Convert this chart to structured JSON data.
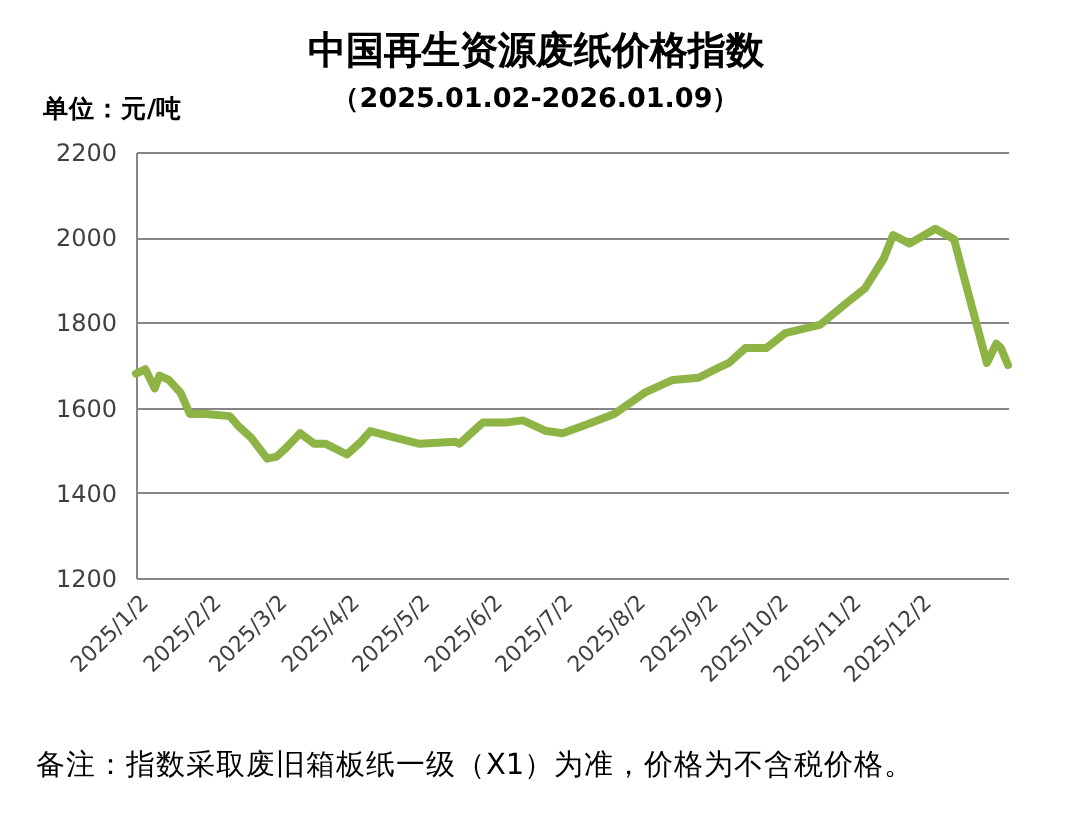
{
  "chart_data": {
    "type": "line",
    "title": "中国再生资源废纸价格指数",
    "subtitle": "（2025.01.02-2026.01.09）",
    "ylabel": "单位：元/吨",
    "annotations": [
      "备注：指数采取废旧箱板纸一级（X1）为准，价格为不含税价格。"
    ],
    "x": [
      "2025-01-02",
      "2025-01-06",
      "2025-01-10",
      "2025-01-12",
      "2025-01-16",
      "2025-01-21",
      "2025-01-25",
      "2025-02-01",
      "2025-02-11",
      "2025-02-15",
      "2025-02-20",
      "2025-02-27",
      "2025-03-03",
      "2025-03-07",
      "2025-03-13",
      "2025-03-19",
      "2025-03-24",
      "2025-04-02",
      "2025-04-08",
      "2025-04-12",
      "2025-04-22",
      "2025-05-03",
      "2025-05-18",
      "2025-05-20",
      "2025-05-30",
      "2025-06-09",
      "2025-06-16",
      "2025-06-26",
      "2025-07-03",
      "2025-07-13",
      "2025-07-25",
      "2025-08-07",
      "2025-08-19",
      "2025-08-30",
      "2025-09-08",
      "2025-09-12",
      "2025-09-19",
      "2025-09-28",
      "2025-10-06",
      "2025-10-21",
      "2025-11-01",
      "2025-11-09",
      "2025-11-17",
      "2025-11-21",
      "2025-11-28",
      "2025-12-09",
      "2025-12-17",
      "2025-12-22",
      "2025-12-31",
      "2026-01-04",
      "2026-01-06",
      "2026-01-09"
    ],
    "series": [
      {
        "color": "#8fb446",
        "values": [
          1680,
          1690,
          1645,
          1675,
          1665,
          1635,
          1585,
          1585,
          1580,
          1555,
          1530,
          1480,
          1485,
          1505,
          1540,
          1515,
          1515,
          1490,
          1520,
          1545,
          1530,
          1515,
          1520,
          1515,
          1565,
          1565,
          1570,
          1545,
          1540,
          1560,
          1585,
          1635,
          1665,
          1670,
          1695,
          1705,
          1740,
          1740,
          1775,
          1795,
          1845,
          1880,
          1950,
          2005,
          1985,
          2020,
          1995,
          1890,
          1705,
          1750,
          1740,
          1700
        ]
      }
    ],
    "xlim": [
      "2025-01-02",
      "2026-01-09"
    ],
    "ylim": [
      1200,
      2200
    ],
    "xticks": [
      {
        "value": "2025-01-02",
        "label": "2025/1/2"
      },
      {
        "value": "2025-02-02",
        "label": "2025/2/2"
      },
      {
        "value": "2025-03-02",
        "label": "2025/3/2"
      },
      {
        "value": "2025-04-02",
        "label": "2025/4/2"
      },
      {
        "value": "2025-05-02",
        "label": "2025/5/2"
      },
      {
        "value": "2025-06-02",
        "label": "2025/6/2"
      },
      {
        "value": "2025-07-02",
        "label": "2025/7/2"
      },
      {
        "value": "2025-08-02",
        "label": "2025/8/2"
      },
      {
        "value": "2025-09-02",
        "label": "2025/9/2"
      },
      {
        "value": "2025-10-02",
        "label": "2025/10/2"
      },
      {
        "value": "2025-11-02",
        "label": "2025/11/2"
      },
      {
        "value": "2025-12-02",
        "label": "2025/12/2"
      }
    ],
    "yticks": [
      1200,
      1400,
      1600,
      1800,
      2000,
      2200
    ],
    "grid": "y",
    "line_style": "solid"
  }
}
